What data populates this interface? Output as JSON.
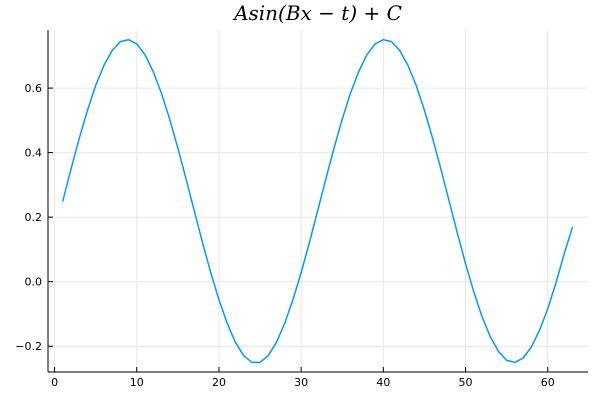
{
  "chart_data": {
    "type": "line",
    "title": "Asin(Bx − t) + C",
    "xlabel": "",
    "ylabel": "",
    "xlim": [
      -0.8,
      64.9
    ],
    "ylim": [
      -0.28,
      0.78
    ],
    "xticks": [
      0,
      10,
      20,
      30,
      40,
      50,
      60
    ],
    "xtick_labels": [
      "0",
      "10",
      "20",
      "30",
      "40",
      "50",
      "60"
    ],
    "yticks": [
      -0.2,
      0.0,
      0.2,
      0.4,
      0.6
    ],
    "ytick_labels": [
      "−0.2",
      "0.0",
      "0.2",
      "0.4",
      "0.6"
    ],
    "grid": true,
    "legend": "none",
    "series": [
      {
        "color": "#009af9",
        "x": [
          1,
          2,
          3,
          4,
          5,
          6,
          7,
          8,
          9,
          10,
          11,
          12,
          13,
          14,
          15,
          16,
          17,
          18,
          19,
          20,
          21,
          22,
          23,
          24,
          25,
          26,
          27,
          28,
          29,
          30,
          31,
          32,
          33,
          34,
          35,
          36,
          37,
          38,
          39,
          40,
          41,
          42,
          43,
          44,
          45,
          46,
          47,
          48,
          49,
          50,
          51,
          52,
          53,
          54,
          55,
          56,
          57,
          58,
          59,
          60,
          61,
          62,
          63
        ],
        "y": [
          0.25,
          0.349,
          0.444,
          0.531,
          0.608,
          0.67,
          0.716,
          0.744,
          0.75,
          0.737,
          0.703,
          0.651,
          0.584,
          0.504,
          0.414,
          0.318,
          0.219,
          0.121,
          0.028,
          -0.056,
          -0.129,
          -0.188,
          -0.229,
          -0.25,
          -0.25,
          -0.229,
          -0.188,
          -0.129,
          -0.056,
          0.028,
          0.121,
          0.219,
          0.318,
          0.414,
          0.504,
          0.584,
          0.651,
          0.703,
          0.737,
          0.75,
          0.744,
          0.716,
          0.67,
          0.608,
          0.531,
          0.444,
          0.349,
          0.25,
          0.151,
          0.056,
          -0.031,
          -0.108,
          -0.17,
          -0.216,
          -0.244,
          -0.25,
          -0.237,
          -0.203,
          -0.151,
          -0.084,
          -0.004,
          0.086,
          0.168
        ]
      }
    ]
  }
}
